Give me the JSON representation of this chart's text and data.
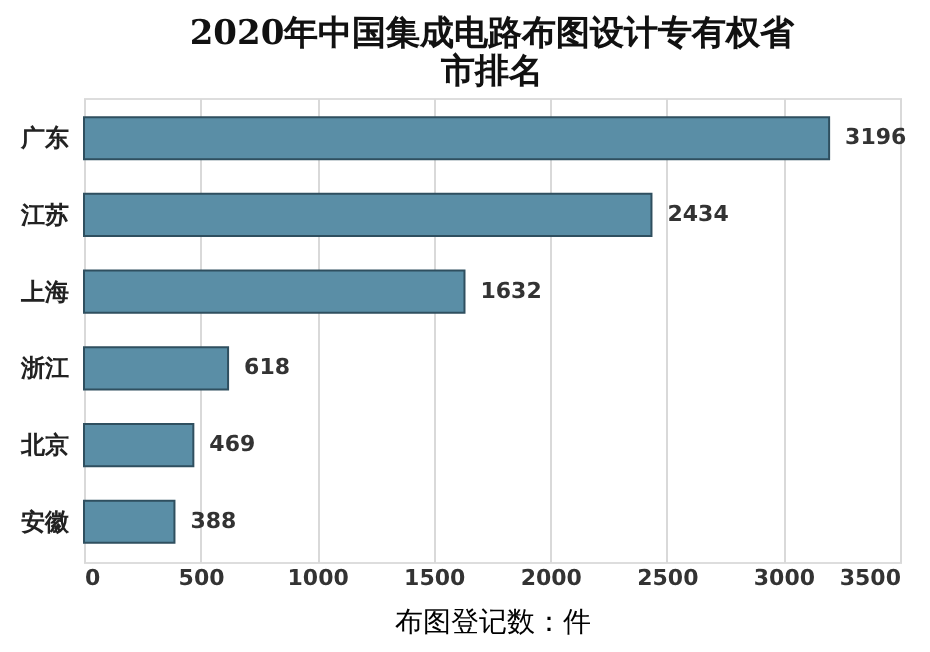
{
  "chart_data": {
    "type": "bar",
    "orientation": "horizontal",
    "title": "2020年中国集成电路布图设计专有权省市排名",
    "categories": [
      "广东",
      "江苏",
      "上海",
      "浙江",
      "北京",
      "安徽"
    ],
    "values": [
      3196,
      2434,
      1632,
      618,
      469,
      388
    ],
    "color": "#5a8ea6",
    "xlabel": "布图登记数：件",
    "xlim": [
      0,
      3500
    ],
    "xticks": [
      0,
      500,
      1000,
      1500,
      2000,
      2500,
      3000,
      3500
    ],
    "grid": "x",
    "data_labels": true
  }
}
